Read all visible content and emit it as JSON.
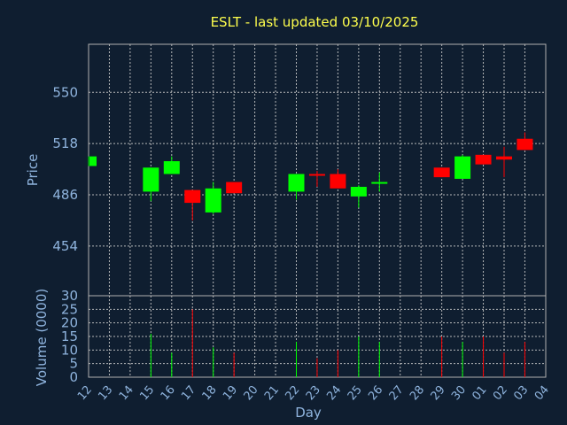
{
  "colors": {
    "background": "#0f1e30",
    "title": "#ffff4d",
    "axis_text": "#8fb4de",
    "frame": "#b0b0b0",
    "grid": "#c8c8c8",
    "up": "#00ff00",
    "down": "#ff0000"
  },
  "chart_data": {
    "type": "candlestick",
    "title": "ESLT - last updated 03/10/2025",
    "xlabel": "Day",
    "ylabel": "Price",
    "volume_ylabel": "Volume (0000)",
    "grid": true,
    "price_ylim": [
      423,
      580
    ],
    "price_yticks": [
      454,
      486,
      518,
      550
    ],
    "volume_ylim": [
      0,
      30
    ],
    "volume_yticks": [
      0,
      5,
      10,
      15,
      20,
      25,
      30
    ],
    "x_ticks": [
      "12",
      "13",
      "14",
      "15",
      "16",
      "17",
      "18",
      "19",
      "20",
      "21",
      "22",
      "23",
      "24",
      "25",
      "26",
      "27",
      "28",
      "29",
      "30",
      "01",
      "02",
      "03",
      "04"
    ],
    "candles": [
      {
        "day": "12",
        "open": 504,
        "close": 510,
        "high": 510,
        "low": 504,
        "volume": 0
      },
      {
        "day": "15",
        "open": 488,
        "close": 503,
        "high": 503,
        "low": 482,
        "volume": 16
      },
      {
        "day": "16",
        "open": 499,
        "close": 507,
        "high": 510,
        "low": 499,
        "volume": 9
      },
      {
        "day": "17",
        "open": 489,
        "close": 481,
        "high": 489,
        "low": 470,
        "volume": 25
      },
      {
        "day": "18",
        "open": 475,
        "close": 490,
        "high": 494,
        "low": 474,
        "volume": 11
      },
      {
        "day": "19",
        "open": 494,
        "close": 487,
        "high": 494,
        "low": 487,
        "volume": 9
      },
      {
        "day": "22",
        "open": 488,
        "close": 499,
        "high": 499,
        "low": 483,
        "volume": 13
      },
      {
        "day": "23",
        "open": 499,
        "close": 498,
        "high": 501,
        "low": 491,
        "volume": 7
      },
      {
        "day": "24",
        "open": 499,
        "close": 490,
        "high": 502,
        "low": 490,
        "volume": 10
      },
      {
        "day": "25",
        "open": 485,
        "close": 491,
        "high": 492,
        "low": 478,
        "volume": 15
      },
      {
        "day": "26",
        "open": 494,
        "close": 494,
        "high": 500,
        "low": 488,
        "volume": 13
      },
      {
        "day": "29",
        "open": 503,
        "close": 497,
        "high": 503,
        "low": 497,
        "volume": 15
      },
      {
        "day": "30",
        "open": 496,
        "close": 510,
        "high": 511,
        "low": 496,
        "volume": 13
      },
      {
        "day": "01",
        "open": 511,
        "close": 505,
        "high": 511,
        "low": 505,
        "volume": 15
      },
      {
        "day": "02",
        "open": 510,
        "close": 508,
        "high": 516,
        "low": 497,
        "volume": 9
      },
      {
        "day": "03",
        "open": 521,
        "close": 514,
        "high": 525,
        "low": 514,
        "volume": 13
      }
    ]
  }
}
